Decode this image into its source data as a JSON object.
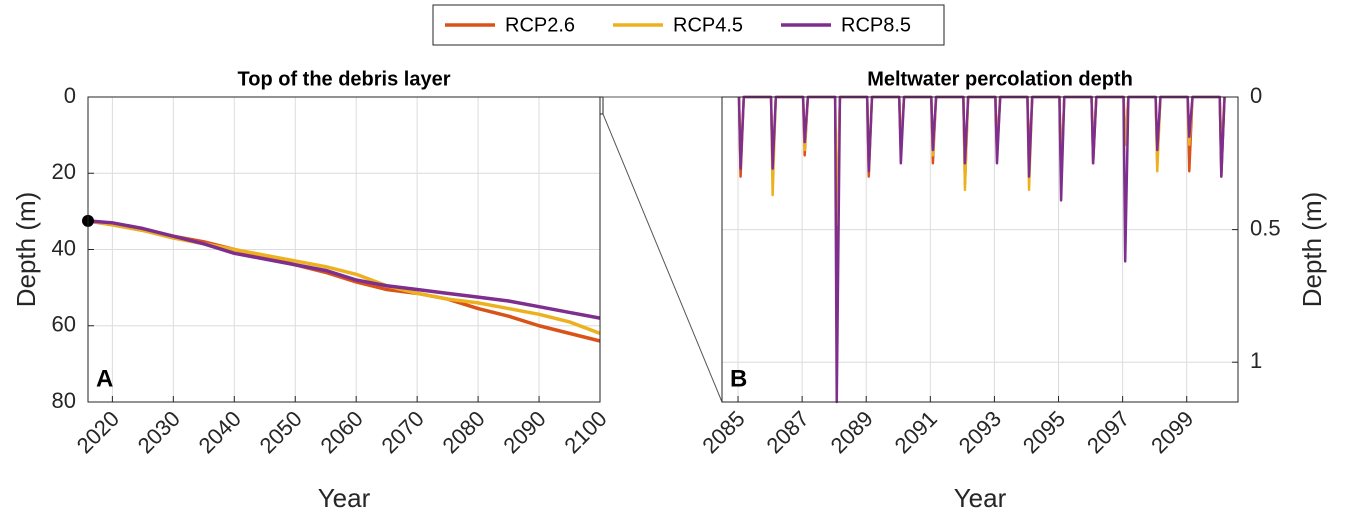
{
  "chart_data": [
    {
      "type": "line",
      "title": "Top of the debris layer",
      "panel_label": "A",
      "x_label": "Year",
      "y_label": "Depth (m)",
      "y_reverse": true,
      "y_side": "left",
      "grid": true,
      "xlim": [
        2016,
        2100
      ],
      "xticks": [
        2020,
        2030,
        2040,
        2050,
        2060,
        2070,
        2080,
        2090,
        2100
      ],
      "ylim": [
        0,
        80
      ],
      "yticks": [
        0,
        20,
        40,
        60,
        80
      ],
      "x": [
        2016,
        2020,
        2025,
        2030,
        2035,
        2040,
        2045,
        2050,
        2055,
        2060,
        2065,
        2070,
        2075,
        2080,
        2085,
        2090,
        2095,
        2100
      ],
      "series": [
        {
          "name": "RCP2.6",
          "color": "#d95319",
          "values": [
            32.5,
            33.5,
            35,
            36.5,
            38,
            40,
            42,
            44,
            46,
            48.5,
            50.5,
            51.5,
            53,
            55.5,
            57.5,
            60,
            62,
            64
          ]
        },
        {
          "name": "RCP4.5",
          "color": "#edb120",
          "values": [
            32.5,
            33.5,
            35,
            37,
            38.5,
            40,
            41.5,
            43,
            44.5,
            46.5,
            49.5,
            51.5,
            53,
            54,
            55.5,
            57,
            59,
            62
          ]
        },
        {
          "name": "RCP8.5",
          "color": "#7e2f8e",
          "values": [
            32.5,
            33,
            34.5,
            36.5,
            38.5,
            41,
            42.5,
            44,
            45.5,
            48,
            49.5,
            50.5,
            51.5,
            52.5,
            53.5,
            55,
            56.5,
            58
          ]
        }
      ],
      "marker": {
        "x": 2016,
        "y": 32.5,
        "color": "#000000"
      }
    },
    {
      "type": "line",
      "title": "Meltwater percolation depth",
      "panel_label": "B",
      "x_label": "Year",
      "y_label": "Depth (m)",
      "y_reverse": true,
      "y_side": "right",
      "grid": true,
      "xlim": [
        2084.5,
        2100.6
      ],
      "xticks": [
        2085,
        2087,
        2089,
        2091,
        2093,
        2095,
        2097,
        2099
      ],
      "ylim": [
        0,
        1.15
      ],
      "yticks": [
        0,
        0.5,
        1
      ],
      "x": [
        2085.03,
        2085.08,
        2085.18,
        2086.03,
        2086.08,
        2086.18,
        2087.03,
        2087.08,
        2087.18,
        2088.03,
        2088.08,
        2088.18,
        2089.03,
        2089.08,
        2089.18,
        2090.03,
        2090.08,
        2090.18,
        2091.03,
        2091.08,
        2091.18,
        2092.03,
        2092.08,
        2092.18,
        2093.03,
        2093.08,
        2093.18,
        2094.03,
        2094.08,
        2094.18,
        2095.03,
        2095.08,
        2095.18,
        2096.03,
        2096.08,
        2096.18,
        2097.03,
        2097.08,
        2097.18,
        2098.03,
        2098.08,
        2098.18,
        2099.03,
        2099.08,
        2099.18,
        2100.03,
        2100.08,
        2100.18
      ],
      "series": [
        {
          "name": "RCP2.6",
          "color": "#d95319",
          "values": [
            0,
            0.3,
            0,
            0,
            0.3,
            0,
            0,
            0.22,
            0,
            0,
            0.55,
            0,
            0,
            0.3,
            0,
            0,
            0.2,
            0,
            0,
            0.25,
            0,
            0,
            0.33,
            0,
            0,
            0.22,
            0,
            0,
            0.25,
            0,
            0,
            0.3,
            0,
            0,
            0.25,
            0,
            0,
            0.18,
            0,
            0,
            0.25,
            0,
            0,
            0.28,
            0,
            0,
            0.3,
            0
          ]
        },
        {
          "name": "RCP4.5",
          "color": "#edb120",
          "values": [
            0,
            0.25,
            0,
            0,
            0.37,
            0,
            0,
            0.2,
            0,
            0,
            0.48,
            0,
            0,
            0.25,
            0,
            0,
            0.2,
            0,
            0,
            0.22,
            0,
            0,
            0.35,
            0,
            0,
            0.2,
            0,
            0,
            0.35,
            0,
            0,
            0.3,
            0,
            0,
            0.2,
            0,
            0,
            0.18,
            0,
            0,
            0.28,
            0,
            0,
            0.18,
            0,
            0,
            0.2,
            0
          ]
        },
        {
          "name": "RCP8.5",
          "color": "#7e2f8e",
          "values": [
            0,
            0.27,
            0,
            0,
            0.27,
            0,
            0,
            0.17,
            0,
            0,
            1.15,
            0,
            0,
            0.28,
            0,
            0,
            0.25,
            0,
            0,
            0.2,
            0,
            0,
            0.25,
            0,
            0,
            0.25,
            0,
            0,
            0.3,
            0,
            0,
            0.39,
            0,
            0,
            0.25,
            0,
            0,
            0.62,
            0,
            0,
            0.2,
            0,
            0,
            0.15,
            0,
            0,
            0.3,
            0
          ]
        }
      ]
    }
  ]
}
